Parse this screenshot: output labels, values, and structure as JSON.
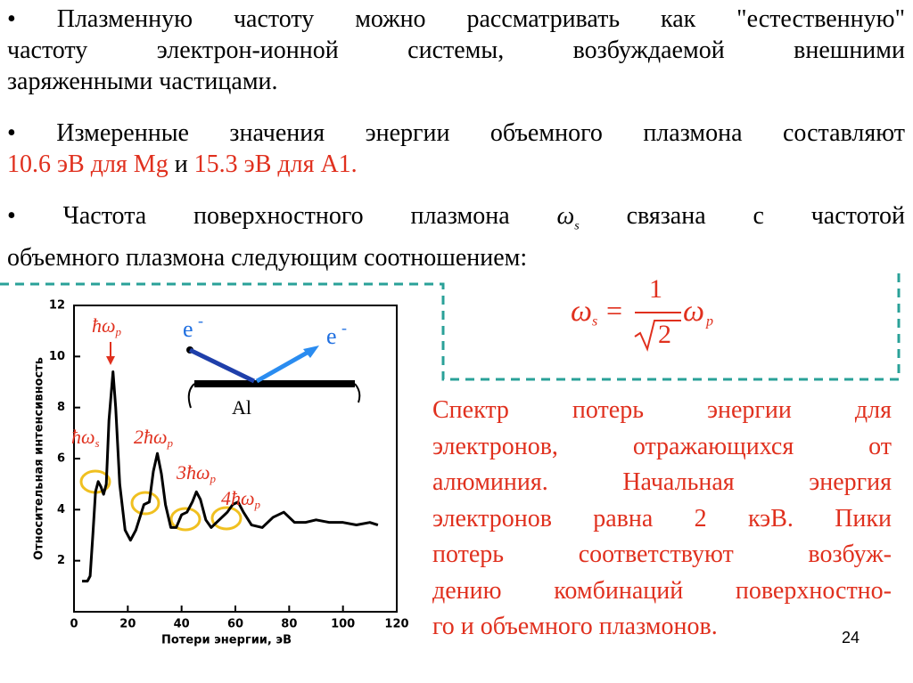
{
  "slide": {
    "bullet1": [
      "• Плазменную частоту можно рассматривать как \"естественную\"",
      "частоту электрон-ионной системы, возбуждаемой внешними",
      "заряженными частицами."
    ],
    "bullet2": {
      "line1": "• Измеренные значения энергии  объемного плазмона составляют",
      "mg": "10.6 эВ для Mg",
      "and": "и",
      "al": "15.3 эВ для A1."
    },
    "bullet3": {
      "start": "• Частота поверхностного плазмона",
      "symbol": "ω",
      "symbol_sub": "s",
      "end": "связана с частотой",
      "line2": "объемного плазмона следующим соотношением:"
    },
    "formula": {
      "lhs": "ω",
      "lhs_sub": "s",
      "eq": "=",
      "numerator": "1",
      "radicand": "2",
      "rhs": "ω",
      "rhs_sub": "p"
    },
    "caption": [
      "Спектр потерь энергии для",
      "электронов, отражающихся от",
      "алюминия. Начальная энергия",
      "электронов равна 2 кэВ. Пики",
      "потерь соответствуют возбуж-",
      "дению комбинаций поверхностно-",
      "го и объемного плазмонов."
    ],
    "page_number": "24",
    "inset": {
      "incoming": "e",
      "incoming_charge": "-",
      "outgoing": "e",
      "outgoing_charge": "-",
      "material": "Al"
    }
  },
  "chart_data": {
    "type": "line",
    "x_label": "Потери энергии, эВ",
    "y_label": "Относительная интенсивность",
    "x": [
      3,
      5,
      6,
      7,
      8,
      9,
      10,
      11,
      12,
      13,
      14.5,
      15.5,
      17,
      19,
      21,
      23,
      26,
      28,
      29.5,
      31,
      32.5,
      34,
      36,
      38,
      40,
      42,
      44,
      45.5,
      47,
      49,
      51,
      53,
      55,
      57,
      59,
      61,
      63,
      66,
      70,
      74,
      78,
      82,
      86,
      90,
      95,
      100,
      105,
      110,
      113
    ],
    "values": [
      1.2,
      1.2,
      1.4,
      3,
      4.7,
      5.1,
      4.9,
      4.6,
      5,
      7.5,
      9.4,
      8,
      5,
      3.2,
      2.8,
      3.2,
      4.2,
      4.3,
      5.5,
      6.2,
      5.4,
      4.2,
      3.3,
      3.3,
      3.8,
      3.9,
      4.3,
      4.7,
      4.4,
      3.6,
      3.3,
      3.5,
      3.7,
      3.9,
      4.2,
      4.3,
      3.9,
      3.4,
      3.3,
      3.7,
      3.9,
      3.5,
      3.5,
      3.6,
      3.5,
      3.5,
      3.4,
      3.5,
      3.4
    ],
    "color": "#000000",
    "xlim": [
      0,
      120
    ],
    "ylim": [
      0,
      12
    ],
    "xticks": [
      0,
      20,
      40,
      60,
      80,
      100,
      120
    ],
    "yticks": [
      2,
      4,
      6,
      8,
      10,
      12
    ],
    "annotations": [
      {
        "text": "ħω",
        "sub": "p"
      },
      {
        "text": "ħω",
        "sub": "s"
      },
      {
        "text": "2ħω",
        "sub": "p"
      },
      {
        "text": "3ħω",
        "sub": "p"
      },
      {
        "text": "4ħω",
        "sub": "p"
      }
    ]
  }
}
